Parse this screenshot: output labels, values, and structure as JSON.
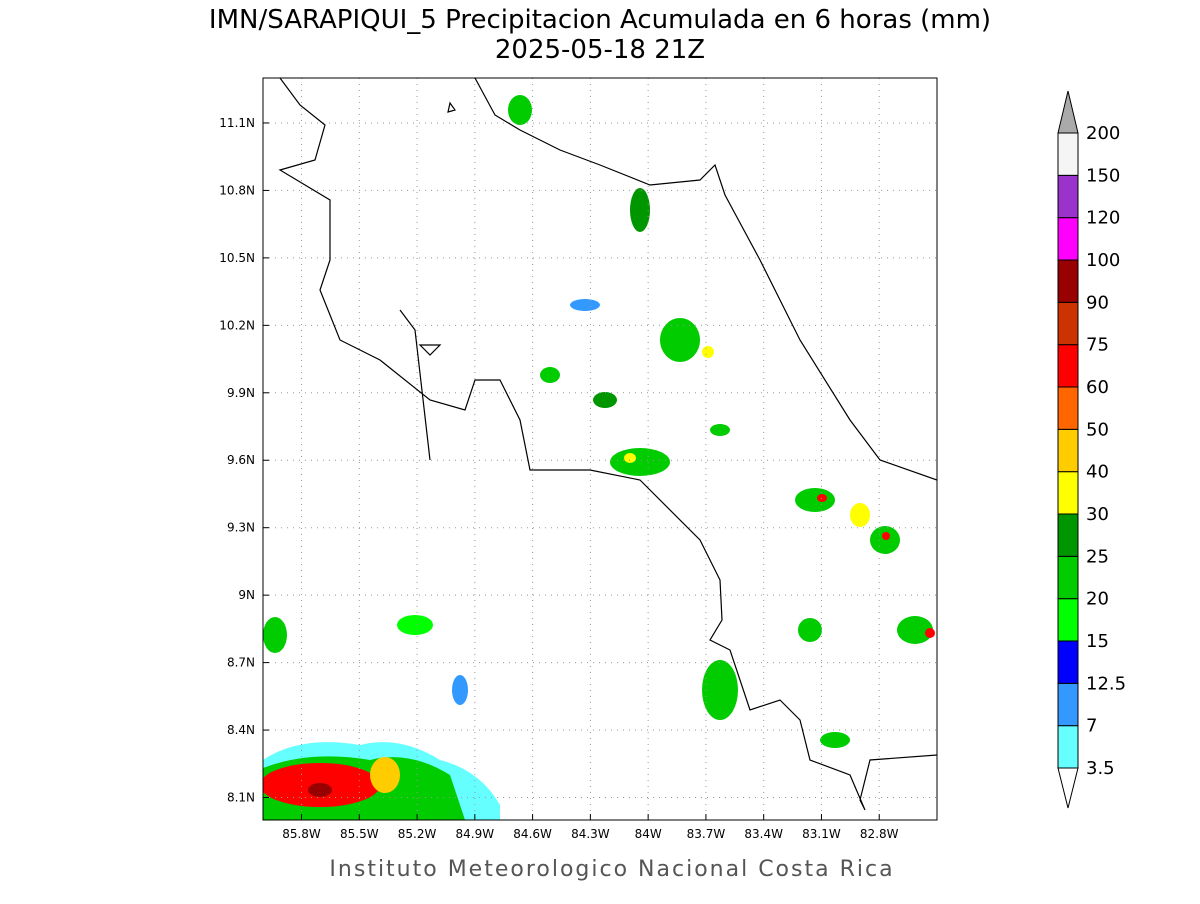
{
  "header": {
    "title": "IMN/SARAPIQUI_5 Precipitacion Acumulada en 6 horas (mm)",
    "subtitle": "2025-05-18 21Z"
  },
  "map": {
    "xlim": [
      -86.0,
      -82.5
    ],
    "ylim": [
      8.0,
      11.3
    ],
    "xticks": [
      {
        "value": -85.8,
        "label": "85.8W"
      },
      {
        "value": -85.5,
        "label": "85.5W"
      },
      {
        "value": -85.2,
        "label": "85.2W"
      },
      {
        "value": -84.9,
        "label": "84.9W"
      },
      {
        "value": -84.6,
        "label": "84.6W"
      },
      {
        "value": -84.3,
        "label": "84.3W"
      },
      {
        "value": -84.0,
        "label": "84W"
      },
      {
        "value": -83.7,
        "label": "83.7W"
      },
      {
        "value": -83.4,
        "label": "83.4W"
      },
      {
        "value": -83.1,
        "label": "83.1W"
      },
      {
        "value": -82.8,
        "label": "82.8W"
      }
    ],
    "yticks": [
      {
        "value": 11.1,
        "label": "11.1N"
      },
      {
        "value": 10.8,
        "label": "10.8N"
      },
      {
        "value": 10.5,
        "label": "10.5N"
      },
      {
        "value": 10.2,
        "label": "10.2N"
      },
      {
        "value": 9.9,
        "label": "9.9N"
      },
      {
        "value": 9.6,
        "label": "9.6N"
      },
      {
        "value": 9.3,
        "label": "9.3N"
      },
      {
        "value": 9.0,
        "label": "9N"
      },
      {
        "value": 8.7,
        "label": "8.7N"
      },
      {
        "value": 8.4,
        "label": "8.4N"
      },
      {
        "value": 8.1,
        "label": "8.1N"
      }
    ],
    "grid": true
  },
  "legend": {
    "levels": [
      3.5,
      7,
      12.5,
      15,
      20,
      25,
      30,
      40,
      50,
      60,
      75,
      90,
      100,
      120,
      150,
      200
    ],
    "colors": [
      "#66ffff",
      "#3399ff",
      "#0000ff",
      "#00ff00",
      "#00cc00",
      "#009600",
      "#ffff00",
      "#ffcc00",
      "#ff6600",
      "#ff0000",
      "#cc3300",
      "#990000",
      "#ff00ff",
      "#9933cc",
      "#f5f5f5"
    ],
    "under_color": "#ffffff",
    "over_color": "#aaaaaa"
  },
  "footer": "Instituto Meteorologico Nacional Costa Rica"
}
